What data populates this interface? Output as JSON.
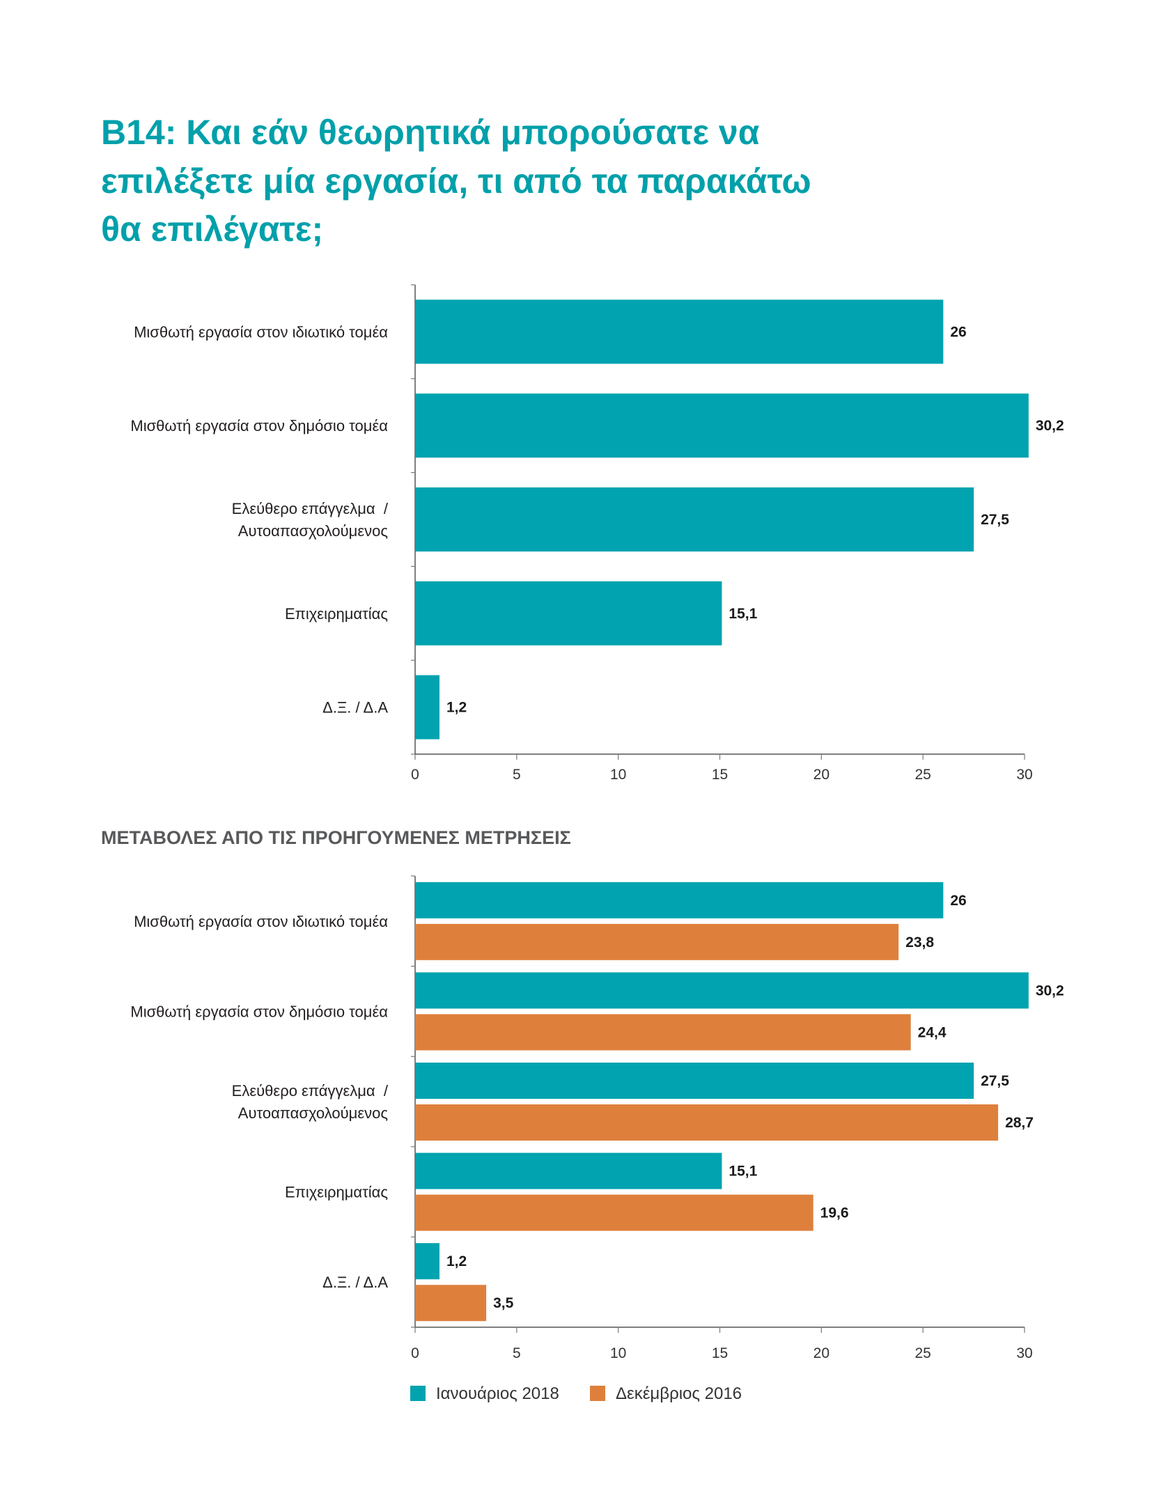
{
  "heading": {
    "lines": [
      "B14: Και εάν θεωρητικά μπορούσατε να",
      "επιλέξετε μία εργασία, τι από τα παρακάτω",
      "θα επιλέγατε;"
    ]
  },
  "colors": {
    "heading": "#00a0aa",
    "subtitle": "#58595b",
    "teal": "#00a3af",
    "orange": "#de803c"
  },
  "chart_data": [
    {
      "type": "bar",
      "orientation": "horizontal",
      "categories": [
        "Μισθωτή εργασία στον ιδιωτικό τομέα",
        "Μισθωτή εργασία στον δημόσιο τομέα",
        "Ελεύθερο επάγγελμα  /\nΑυτοαπασχολούμενος",
        "Επιχειρηματίας",
        "Δ.Ξ. / Δ.Α"
      ],
      "series": [
        {
          "values": [
            26,
            30.2,
            27.5,
            15.1,
            1.2
          ],
          "color": "#00a3af"
        }
      ],
      "xlim": [
        0,
        30
      ],
      "xticks": [
        0,
        5,
        10,
        15,
        20,
        25,
        30
      ],
      "decimal_separator": ",",
      "grid": false
    },
    {
      "type": "bar",
      "orientation": "horizontal",
      "title": "ΜΕΤΑΒΟΛΕΣ ΑΠΟ ΤΙΣ ΠΡΟΗΓΟΥΜΕΝΕΣ ΜΕΤΡΗΣΕΙΣ",
      "categories": [
        "Μισθωτή εργασία στον ιδιωτικό τομέα",
        "Μισθωτή εργασία στον δημόσιο τομέα",
        "Ελεύθερο επάγγελμα  /\nΑυτοαπασχολούμενος",
        "Επιχειρηματίας",
        "Δ.Ξ. / Δ.Α"
      ],
      "series": [
        {
          "name": "Ιανουάριος 2018",
          "values": [
            26,
            30.2,
            27.5,
            15.1,
            1.2
          ],
          "color": "#00a3af"
        },
        {
          "name": "Δεκέμβριος 2016",
          "values": [
            23.8,
            24.4,
            28.7,
            19.6,
            3.5
          ],
          "color": "#de803c"
        }
      ],
      "xlim": [
        0,
        30
      ],
      "xticks": [
        0,
        5,
        10,
        15,
        20,
        25,
        30
      ],
      "decimal_separator": ",",
      "grid": false,
      "legend": "bottom"
    }
  ]
}
